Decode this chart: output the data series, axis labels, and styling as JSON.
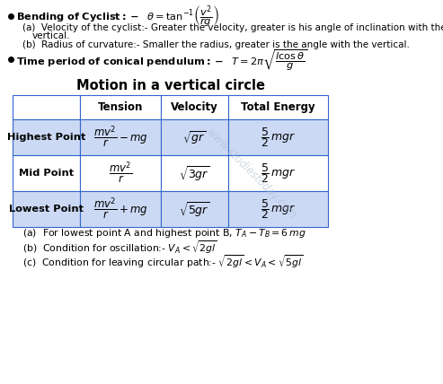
{
  "background_color": "#ffffff",
  "title": "Motion in a vertical circle",
  "table_header_color": "#ffffff",
  "table_row_color": "#ccd9f5",
  "table_border_color": "#3366cc",
  "watermark_text": "www.studiestoday.com",
  "watermark_color": "#b0bcd0",
  "col_headers": [
    "",
    "Tension",
    "Velocity",
    "Total Energy"
  ],
  "row_labels": [
    "Highest Point",
    "Mid Point",
    "Lowest Point"
  ]
}
